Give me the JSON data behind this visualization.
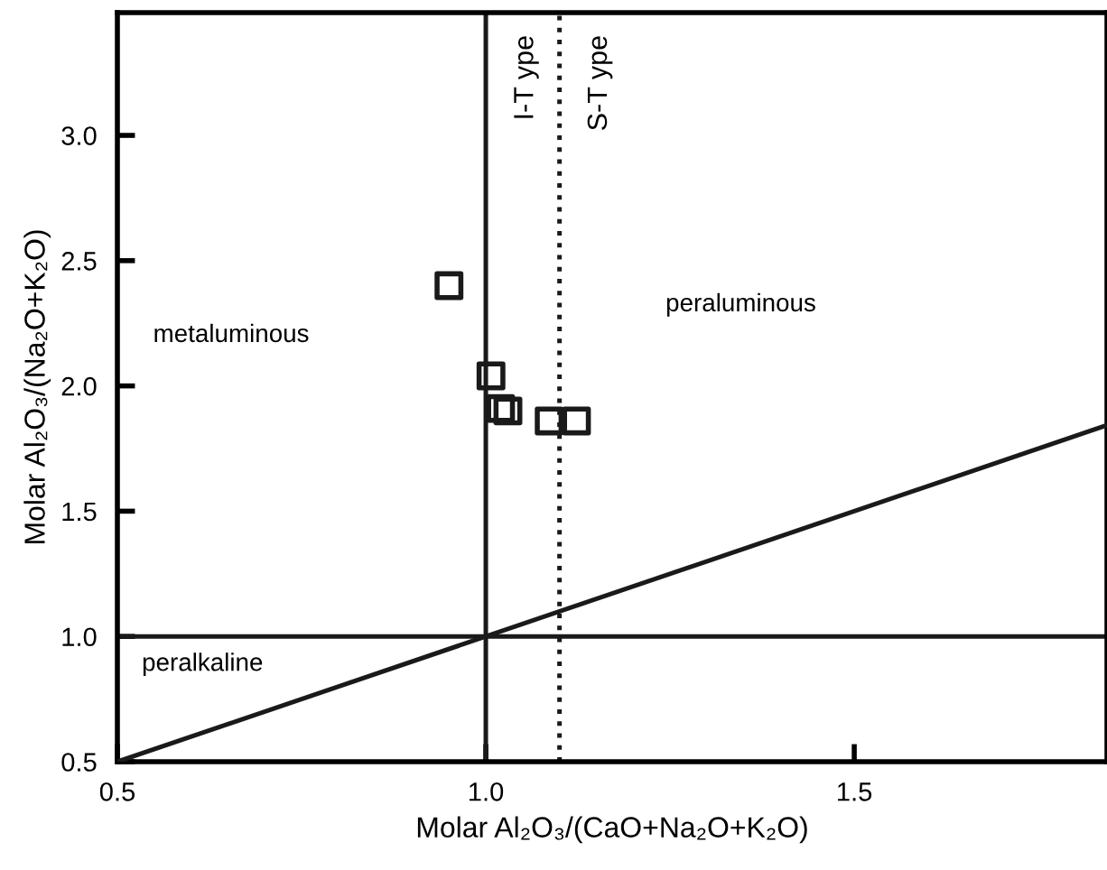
{
  "chart_data": {
    "type": "scatter",
    "xlabel": "Molar Al₂O₃/(CaO+Na₂O+K₂O)",
    "ylabel": "Molar Al₂O₃/(Na₂O+K₂O)",
    "series": [
      {
        "color": "#1a1a1a",
        "marker": "square",
        "x": [
          0.95,
          1.007,
          1.02,
          1.03,
          1.086,
          1.123
        ],
        "values": [
          2.4,
          2.04,
          1.91,
          1.9,
          1.86,
          1.86
        ]
      },
      {
        "type": "line",
        "color": "#1a1a1a",
        "marker": "none",
        "line_style": "solid",
        "x": [
          0.5,
          1.84
        ],
        "values": [
          0.5,
          1.84
        ]
      }
    ],
    "ref_lines": [
      {
        "axis": "x",
        "value": 1.0,
        "label": "I-T ype",
        "color": "#1a1a1a",
        "line_style": "solid"
      },
      {
        "axis": "x",
        "value": 1.1,
        "label": "S-T ype",
        "color": "#1a1a1a",
        "line_style": "dotted"
      },
      {
        "axis": "y",
        "value": 1.0,
        "color": "#1a1a1a",
        "line_style": "solid"
      }
    ],
    "annotations": [
      "metaluminous",
      "peraluminous",
      "peralkaline"
    ],
    "xlim": [
      0.5,
      1.843
    ],
    "ylim": [
      0.5,
      3.49
    ],
    "xticks": [
      0.5,
      {
        "value": 1,
        "label": "1.0"
      },
      1.5
    ],
    "yticks": [
      0.5,
      {
        "value": 1,
        "label": "1.0"
      },
      1.5,
      {
        "value": 2,
        "label": "2.0"
      },
      2.5,
      {
        "value": 3,
        "label": "3.0"
      }
    ],
    "grid": false,
    "legend": false
  }
}
